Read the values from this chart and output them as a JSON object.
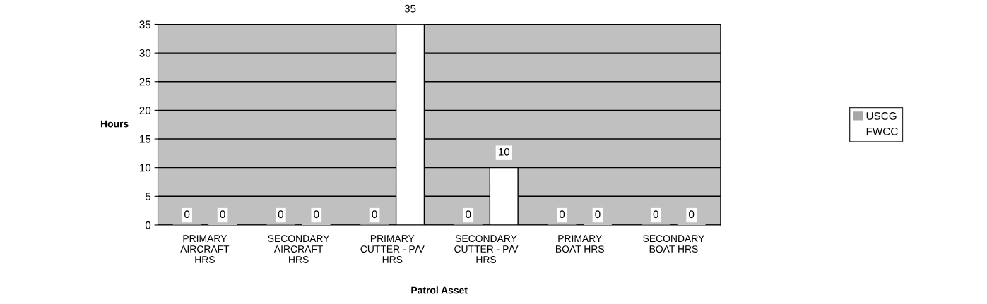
{
  "chart_data": {
    "type": "bar",
    "xlabel": "Patrol Asset",
    "ylabel": "Hours",
    "categories": [
      "PRIMARY\nAIRCRAFT\nHRS",
      "SECONDARY\nAIRCRAFT\nHRS",
      "PRIMARY\nCUTTER - P/V\nHRS",
      "SECONDARY\nCUTTER - P/V\nHRS",
      "PRIMARY\nBOAT HRS",
      "SECONDARY\nBOAT HRS"
    ],
    "series": [
      {
        "name": "USCG",
        "color": "#a6a6a6",
        "values": [
          0,
          0,
          0,
          0,
          0,
          0
        ]
      },
      {
        "name": "FWCC",
        "color": "#ffffff",
        "values": [
          0,
          0,
          35,
          10,
          0,
          0
        ]
      }
    ],
    "ylim": [
      0,
      35
    ],
    "yticks": [
      0,
      5,
      10,
      15,
      20,
      25,
      30,
      35
    ],
    "grid": "y",
    "legend": "right",
    "data_labels": true
  }
}
